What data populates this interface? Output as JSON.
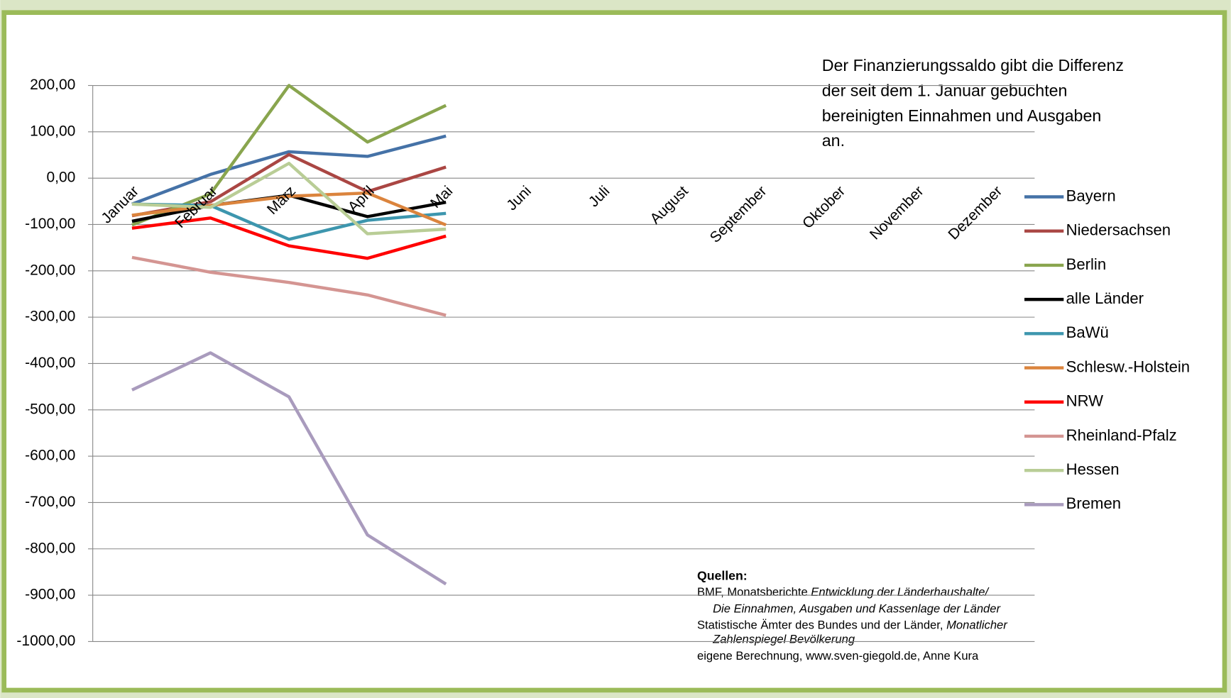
{
  "chart_data": {
    "type": "line",
    "categories": [
      "Januar",
      "Februar",
      "März",
      "April",
      "Mai",
      "Juni",
      "Juli",
      "August",
      "September",
      "Oktober",
      "November",
      "Dezember"
    ],
    "series": [
      {
        "name": "Bayern",
        "color": "#4572a7",
        "values": [
          -56,
          8,
          57,
          47,
          91,
          null,
          null,
          null,
          null,
          null,
          null,
          null
        ]
      },
      {
        "name": "Niedersachsen",
        "color": "#aa4643",
        "values": [
          -81,
          -51,
          51,
          -29,
          24,
          null,
          null,
          null,
          null,
          null,
          null,
          null
        ]
      },
      {
        "name": "Berlin",
        "color": "#89a54e",
        "values": [
          -101,
          -34,
          200,
          78,
          157,
          null,
          null,
          null,
          null,
          null,
          null,
          null
        ]
      },
      {
        "name": "alle Länder",
        "color": "#000000",
        "values": [
          -93,
          -59,
          -37,
          -83,
          -52,
          null,
          null,
          null,
          null,
          null,
          null,
          null
        ]
      },
      {
        "name": "BaWü",
        "color": "#3d96ae",
        "values": [
          -56,
          -59,
          -132,
          -91,
          -76,
          null,
          null,
          null,
          null,
          null,
          null,
          null
        ]
      },
      {
        "name": "Schlesw.-Holstein",
        "color": "#db843d",
        "values": [
          -80,
          -59,
          -39,
          -32,
          -101,
          null,
          null,
          null,
          null,
          null,
          null,
          null
        ]
      },
      {
        "name": "NRW",
        "color": "#ff0000",
        "values": [
          -108,
          -86,
          -146,
          -173,
          -125,
          null,
          null,
          null,
          null,
          null,
          null,
          null
        ]
      },
      {
        "name": "Rheinland-Pfalz",
        "color": "#d49592",
        "values": [
          -171,
          -203,
          -225,
          -252,
          -296,
          null,
          null,
          null,
          null,
          null,
          null,
          null
        ]
      },
      {
        "name": "Hessen",
        "color": "#b9cd96",
        "values": [
          -56,
          -63,
          32,
          -120,
          -110,
          null,
          null,
          null,
          null,
          null,
          null,
          null
        ]
      },
      {
        "name": "Bremen",
        "color": "#a99bbd",
        "values": [
          -457,
          -377,
          -472,
          -770,
          -876,
          null,
          null,
          null,
          null,
          null,
          null,
          null
        ]
      }
    ],
    "ylim": [
      -1000,
      200
    ],
    "yticks": [
      {
        "value": 200,
        "label": "200,00"
      },
      {
        "value": 100,
        "label": "100,00"
      },
      {
        "value": 0,
        "label": "0,00"
      },
      {
        "value": -100,
        "label": "-100,00"
      },
      {
        "value": -200,
        "label": "-200,00"
      },
      {
        "value": -300,
        "label": "-300,00"
      },
      {
        "value": -400,
        "label": "-400,00"
      },
      {
        "value": -500,
        "label": "-500,00"
      },
      {
        "value": -600,
        "label": "-600,00"
      },
      {
        "value": -700,
        "label": "-700,00"
      },
      {
        "value": -800,
        "label": "-800,00"
      },
      {
        "value": -900,
        "label": "-900,00"
      },
      {
        "value": -1000,
        "label": "-1000,00"
      }
    ],
    "grid": true,
    "legend": "right",
    "annotation": [
      "Der Finanzierungssaldo gibt die Differenz",
      "der seit dem 1. Januar gebuchten",
      "bereinigten Einnahmen und Ausgaben",
      "an."
    ],
    "sources": {
      "title": "Quellen:",
      "lines": [
        [
          "BMF,  Monatsberichte ",
          "Entwicklung der Länderhaushalte/"
        ],
        [
          "Die Einnahmen, Ausgaben und Kassenlage der Länder"
        ],
        [
          "Statistische Ämter des Bundes und der Länder, ",
          "Monatlicher"
        ],
        [
          "Zahlenspiegel Bevölkerung"
        ],
        [
          "eigene Berechnung, www.sven-giegold.de, Anne Kura"
        ]
      ]
    }
  }
}
